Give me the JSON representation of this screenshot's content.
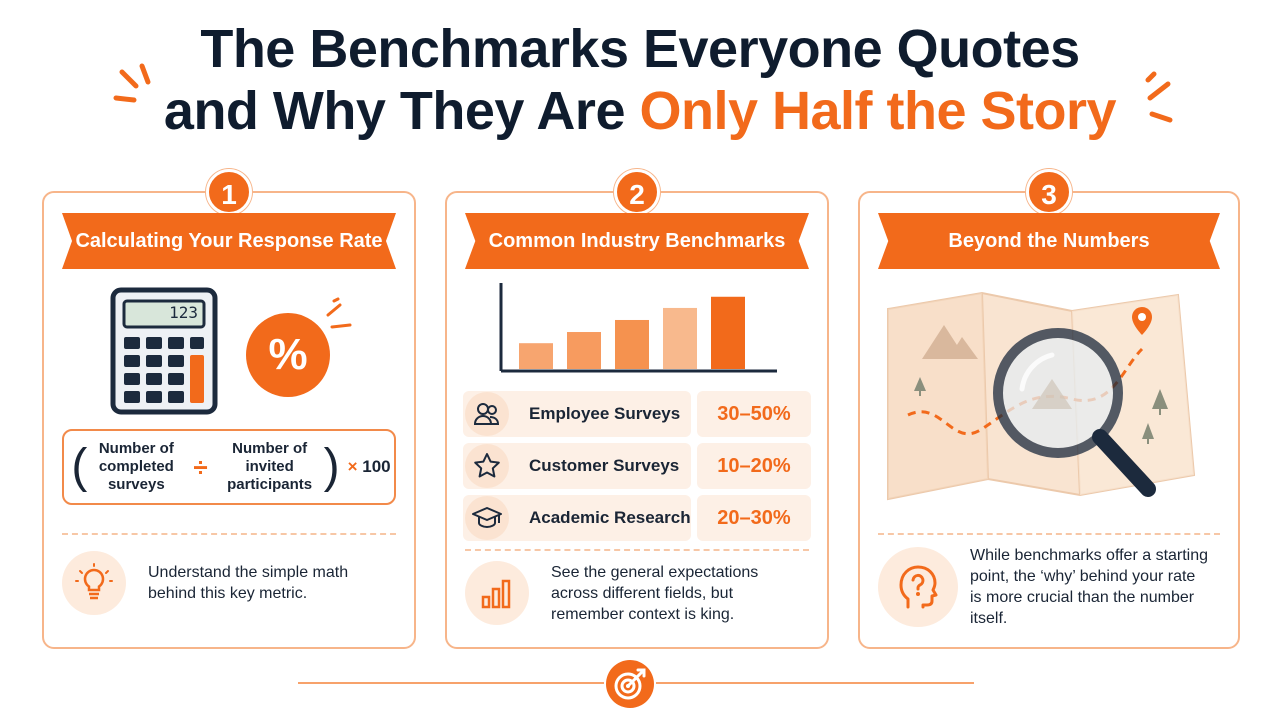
{
  "title": {
    "line1": "The Benchmarks Everyone Quotes",
    "line2_plain": "and Why They Are ",
    "line2_accent": "Only Half the Story"
  },
  "colors": {
    "accent": "#f26a1b",
    "dark": "#0f1c2e",
    "light": "#fdf0e6"
  },
  "cards": [
    {
      "number": "1",
      "header": "Calculating Your Response Rate",
      "calculator_display": "123",
      "percent_symbol": "%",
      "formula": {
        "numerator": "Number of completed surveys",
        "divide": "÷",
        "denominator": "Number of invited participants",
        "times": "×",
        "multiplier": "100"
      },
      "foot_icon": "lightbulb-icon",
      "foot_text": "Understand the simple math behind this key metric."
    },
    {
      "number": "2",
      "header": "Common Industry Benchmarks",
      "bar_levels": [
        0.3,
        0.43,
        0.57,
        0.71,
        0.84
      ],
      "benchmarks": [
        {
          "icon": "people-icon",
          "label": "Employee Surveys",
          "value": "30–50%"
        },
        {
          "icon": "star-icon",
          "label": "Customer Surveys",
          "value": "10–20%"
        },
        {
          "icon": "graduation-cap-icon",
          "label": "Academic Research",
          "value": "20–30%"
        }
      ],
      "foot_icon": "bar-chart-icon",
      "foot_text": "See the general expectations across different fields, but remember context is king."
    },
    {
      "number": "3",
      "header": "Beyond the Numbers",
      "illustration": "map-with-magnifying-glass",
      "foot_icon": "head-question-icon",
      "foot_text": "While benchmarks offer a starting point, the ‘why’ behind your rate is more crucial than the number itself."
    }
  ],
  "footer_icon": "target-icon"
}
